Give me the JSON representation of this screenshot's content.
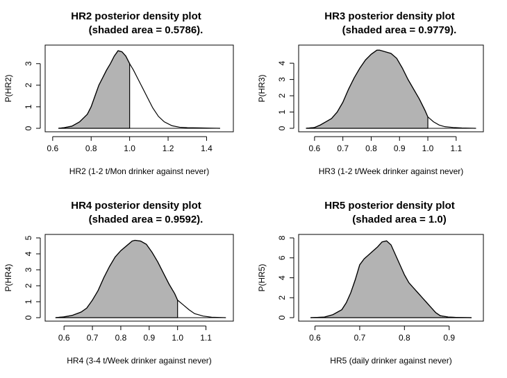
{
  "chart_data": [
    {
      "type": "area",
      "title": "HR2 posterior density plot",
      "subtitle": "(shaded area = 0.5786).",
      "xlabel": "HR2 (1-2 t/Mon drinker against never)",
      "ylabel": "P(HR2)",
      "xlim": [
        0.6,
        1.5
      ],
      "ylim": [
        0,
        3.7
      ],
      "xticks": [
        0.6,
        0.8,
        1.0,
        1.2,
        1.4
      ],
      "xtick_labels": [
        "0.6",
        "0.8",
        "1.0",
        "1.2",
        "1.4"
      ],
      "yticks": [
        0,
        1,
        2,
        3
      ],
      "ytick_labels": [
        "0",
        "1",
        "2",
        "3"
      ],
      "shade_upper": 1.0,
      "fill_color": "#b3b3b3",
      "line_color": "#000000",
      "x": [
        0.63,
        0.66,
        0.7,
        0.74,
        0.78,
        0.8,
        0.82,
        0.84,
        0.86,
        0.88,
        0.9,
        0.92,
        0.94,
        0.96,
        0.98,
        1.0,
        1.02,
        1.04,
        1.06,
        1.08,
        1.1,
        1.12,
        1.15,
        1.18,
        1.22,
        1.26,
        1.3,
        1.36,
        1.42,
        1.47
      ],
      "y": [
        0.0,
        0.03,
        0.1,
        0.3,
        0.65,
        1.0,
        1.5,
        2.0,
        2.35,
        2.7,
        3.0,
        3.35,
        3.6,
        3.55,
        3.35,
        3.0,
        2.7,
        2.35,
        2.0,
        1.65,
        1.3,
        0.95,
        0.55,
        0.3,
        0.12,
        0.05,
        0.03,
        0.02,
        0.01,
        0.0
      ]
    },
    {
      "type": "area",
      "title": "HR3 posterior density plot",
      "subtitle": "(shaded area = 0.9779).",
      "xlabel": "HR3 (1-2 t/Week drinker against never)",
      "ylabel": "P(HR3)",
      "xlim": [
        0.57,
        1.17
      ],
      "ylim": [
        0,
        4.9
      ],
      "xticks": [
        0.6,
        0.7,
        0.8,
        0.9,
        1.0,
        1.1
      ],
      "xtick_labels": [
        "0.6",
        "0.7",
        "0.8",
        "0.9",
        "1.0",
        "1.1"
      ],
      "yticks": [
        0,
        1,
        2,
        3,
        4
      ],
      "ytick_labels": [
        "0",
        "1",
        "2",
        "3",
        "4"
      ],
      "shade_upper": 1.0,
      "fill_color": "#b3b3b3",
      "line_color": "#000000",
      "x": [
        0.57,
        0.6,
        0.62,
        0.64,
        0.66,
        0.68,
        0.7,
        0.72,
        0.74,
        0.76,
        0.78,
        0.8,
        0.82,
        0.83,
        0.85,
        0.87,
        0.89,
        0.91,
        0.93,
        0.95,
        0.97,
        0.99,
        1.0,
        1.02,
        1.04,
        1.06,
        1.09,
        1.12,
        1.17
      ],
      "y": [
        0.0,
        0.05,
        0.2,
        0.4,
        0.6,
        1.0,
        1.6,
        2.4,
        3.1,
        3.7,
        4.2,
        4.55,
        4.8,
        4.8,
        4.7,
        4.6,
        4.3,
        3.7,
        3.0,
        2.4,
        1.8,
        1.1,
        0.7,
        0.4,
        0.2,
        0.1,
        0.05,
        0.02,
        0.0
      ]
    },
    {
      "type": "area",
      "title": "HR4 posterior density plot",
      "subtitle": "(shaded area = 0.9592).",
      "xlabel": "HR4 (3-4 t/Week drinker against never)",
      "ylabel": "P(HR4)",
      "xlim": [
        0.56,
        1.17
      ],
      "ylim": [
        0,
        5.0
      ],
      "xticks": [
        0.6,
        0.7,
        0.8,
        0.9,
        1.0,
        1.1
      ],
      "xtick_labels": [
        "0.6",
        "0.7",
        "0.8",
        "0.9",
        "1.0",
        "1.1"
      ],
      "yticks": [
        0,
        1,
        2,
        3,
        4,
        5
      ],
      "ytick_labels": [
        "0",
        "1",
        "2",
        "3",
        "4",
        "5"
      ],
      "shade_upper": 1.0,
      "fill_color": "#b3b3b3",
      "line_color": "#000000",
      "x": [
        0.57,
        0.6,
        0.63,
        0.66,
        0.68,
        0.7,
        0.72,
        0.74,
        0.76,
        0.78,
        0.8,
        0.82,
        0.84,
        0.85,
        0.87,
        0.89,
        0.91,
        0.93,
        0.95,
        0.97,
        0.99,
        1.0,
        1.02,
        1.04,
        1.06,
        1.09,
        1.12,
        1.17
      ],
      "y": [
        0.0,
        0.05,
        0.15,
        0.35,
        0.6,
        1.1,
        1.7,
        2.5,
        3.2,
        3.8,
        4.2,
        4.5,
        4.8,
        4.85,
        4.8,
        4.6,
        4.1,
        3.5,
        2.8,
        2.1,
        1.5,
        1.1,
        0.8,
        0.5,
        0.25,
        0.1,
        0.03,
        0.0
      ]
    },
    {
      "type": "area",
      "title": "HR5 posterior density plot",
      "subtitle": "(shaded area = 1.0)",
      "xlabel": "HR5 (daily drinker against never)",
      "ylabel": "P(HR5)",
      "xlim": [
        0.58,
        0.96
      ],
      "ylim": [
        0,
        8.0
      ],
      "xticks": [
        0.6,
        0.7,
        0.8,
        0.9
      ],
      "xtick_labels": [
        "0.6",
        "0.7",
        "0.8",
        "0.9"
      ],
      "yticks": [
        0,
        2,
        4,
        6,
        8
      ],
      "ytick_labels": [
        "0",
        "2",
        "4",
        "6",
        "8"
      ],
      "shade_upper": 0.96,
      "fill_color": "#b3b3b3",
      "line_color": "#000000",
      "x": [
        0.59,
        0.62,
        0.64,
        0.66,
        0.67,
        0.68,
        0.69,
        0.7,
        0.71,
        0.72,
        0.73,
        0.74,
        0.75,
        0.76,
        0.77,
        0.78,
        0.79,
        0.8,
        0.81,
        0.82,
        0.83,
        0.84,
        0.85,
        0.86,
        0.87,
        0.88,
        0.9,
        0.92,
        0.95
      ],
      "y": [
        0.0,
        0.05,
        0.3,
        0.8,
        1.5,
        2.5,
        3.8,
        5.3,
        5.9,
        6.3,
        6.7,
        7.1,
        7.6,
        7.7,
        7.3,
        6.3,
        5.3,
        4.3,
        3.5,
        3.0,
        2.5,
        2.0,
        1.5,
        1.0,
        0.5,
        0.2,
        0.05,
        0.02,
        0.0
      ]
    }
  ]
}
